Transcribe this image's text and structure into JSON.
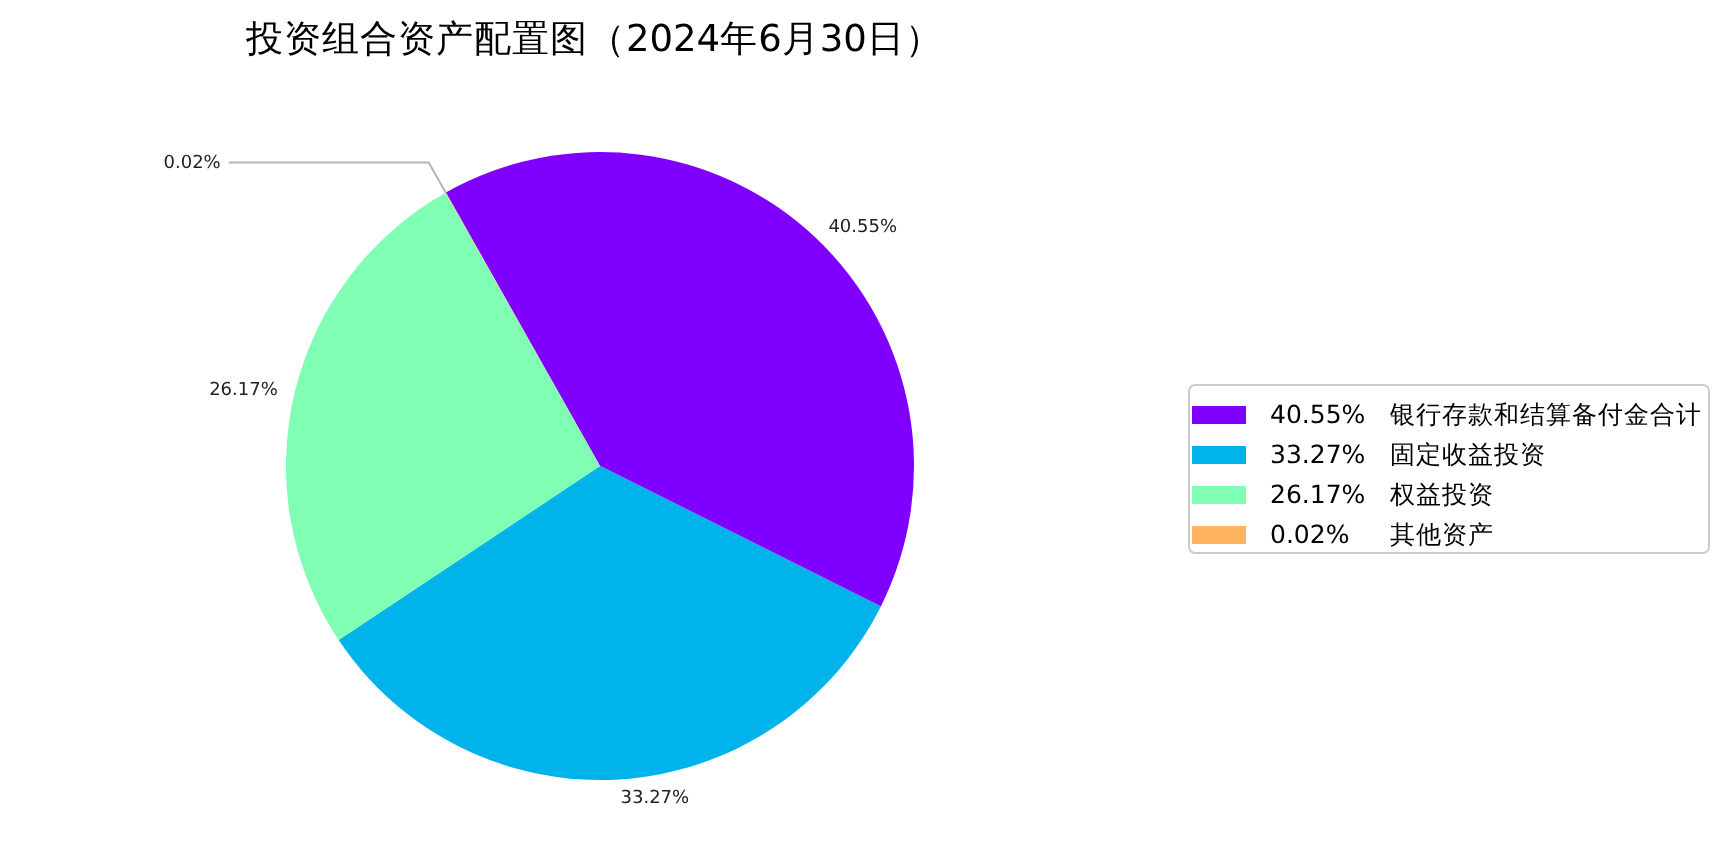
{
  "chart_data": {
    "type": "pie",
    "title": "投资组合资产配置图（2024年6月30日）",
    "categories": [
      "银行存款和结算备付金合计",
      "固定收益投资",
      "权益投资",
      "其他资产"
    ],
    "values": [
      40.55,
      33.27,
      26.17,
      0.02
    ],
    "colors": [
      "#8000ff",
      "#00b4eb",
      "#80ffb4",
      "#ffb461"
    ],
    "value_labels": [
      "40.55%",
      "33.27%",
      "26.17%",
      "0.02%"
    ],
    "legend": "right"
  }
}
